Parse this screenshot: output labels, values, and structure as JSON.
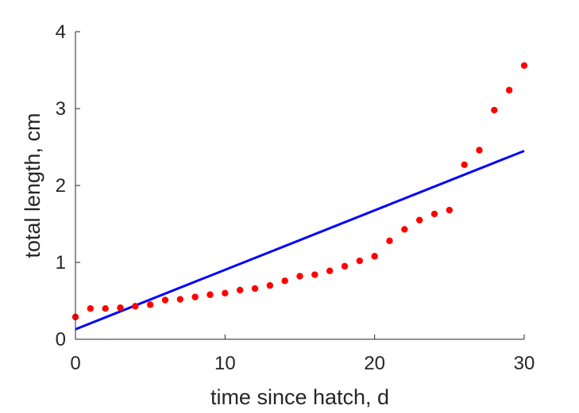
{
  "chart_data": {
    "type": "scatter",
    "title": "",
    "xlabel": "time since hatch, d",
    "ylabel": "total length, cm",
    "xlim": [
      0,
      30
    ],
    "ylim": [
      0,
      4
    ],
    "xticks": [
      0,
      10,
      20,
      30
    ],
    "yticks": [
      0,
      1,
      2,
      3,
      4
    ],
    "xtick_labels": [
      "0",
      "10",
      "20",
      "30"
    ],
    "ytick_labels": [
      "0",
      "1",
      "2",
      "3",
      "4"
    ],
    "grid": false,
    "legend": false,
    "series": [
      {
        "type": "scatter",
        "color": "#ff0000",
        "x": [
          0,
          1,
          2,
          3,
          4,
          5,
          6,
          7,
          8,
          9,
          10,
          11,
          12,
          13,
          14,
          15,
          16,
          17,
          18,
          19,
          20,
          21,
          22,
          23,
          24,
          25,
          26,
          27,
          28,
          29,
          30
        ],
        "y": [
          0.29,
          0.4,
          0.4,
          0.41,
          0.43,
          0.45,
          0.51,
          0.52,
          0.55,
          0.58,
          0.6,
          0.64,
          0.66,
          0.7,
          0.76,
          0.82,
          0.84,
          0.89,
          0.95,
          1.02,
          1.08,
          1.28,
          1.43,
          1.55,
          1.63,
          1.68,
          2.27,
          2.46,
          2.98,
          3.24,
          3.56
        ]
      },
      {
        "type": "line",
        "color": "#0000ff",
        "x": [
          0,
          30
        ],
        "y": [
          0.13,
          2.45
        ]
      }
    ]
  }
}
